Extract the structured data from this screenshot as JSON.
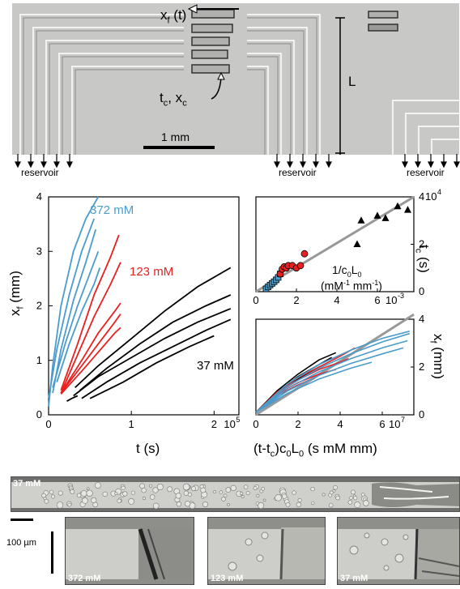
{
  "top_panel": {
    "xf_label": "x",
    "xf_sub": "f",
    "xf_suffix": " (t)",
    "L_label": "L",
    "tc_label": "t",
    "tc_sub": "c",
    "xc_sep": ", x",
    "xc_sub": "c",
    "scale_label": "1 mm",
    "reservoir_labels": [
      "reservoir",
      "reservoir",
      "reservoir"
    ]
  },
  "bottom_panel": {
    "strip_label": "37 mM",
    "scale_label": "100 µm",
    "insets": [
      "372 mM",
      "123 mM",
      "37 mM"
    ]
  },
  "chart_data": [
    {
      "type": "line",
      "xlabel": "t (s)",
      "ylabel": "x",
      "ylabel_sub": "f",
      "ylabel_suffix": " (mm)",
      "xlim": [
        0,
        230000
      ],
      "ylim": [
        0,
        4
      ],
      "xticks": [
        "0",
        "1",
        "2"
      ],
      "xtick_exponent": "10",
      "xtick_exponent_power": "5",
      "yticks": [
        "0",
        "1",
        "2",
        "3",
        "4"
      ],
      "series": [
        {
          "name": "372 mM",
          "color": "#4a9ccc",
          "curves": [
            {
              "x": [
                0,
                5000,
                15000,
                30000,
                45000,
                60000
              ],
              "y": [
                0.15,
                0.9,
                2.0,
                3.0,
                3.6,
                4.0
              ]
            },
            {
              "x": [
                0,
                10000,
                25000,
                40000,
                55000
              ],
              "y": [
                0.3,
                1.2,
                2.2,
                3.0,
                3.6
              ]
            },
            {
              "x": [
                5000,
                15000,
                30000,
                45000,
                57000
              ],
              "y": [
                0.4,
                1.2,
                2.1,
                2.8,
                3.4
              ]
            },
            {
              "x": [
                5000,
                20000,
                35000,
                50000,
                60000
              ],
              "y": [
                0.5,
                1.3,
                2.0,
                2.6,
                3.0
              ]
            },
            {
              "x": [
                10000,
                25000,
                40000,
                55000,
                62000
              ],
              "y": [
                0.6,
                1.3,
                1.9,
                2.4,
                2.7
              ]
            }
          ]
        },
        {
          "name": "123 mM",
          "color": "#e82020",
          "curves": [
            {
              "x": [
                15000,
                35000,
                55000,
                75000,
                85000
              ],
              "y": [
                0.45,
                1.3,
                2.2,
                2.9,
                3.3
              ]
            },
            {
              "x": [
                15000,
                35000,
                55000,
                75000,
                87000
              ],
              "y": [
                0.4,
                1.1,
                1.8,
                2.4,
                2.8
              ]
            },
            {
              "x": [
                15000,
                40000,
                60000,
                80000,
                87000
              ],
              "y": [
                0.4,
                1.0,
                1.5,
                1.9,
                2.05
              ]
            },
            {
              "x": [
                15000,
                40000,
                60000,
                80000,
                87000
              ],
              "y": [
                0.4,
                0.9,
                1.3,
                1.7,
                1.85
              ]
            },
            {
              "x": [
                15000,
                40000,
                60000,
                80000,
                87000
              ],
              "y": [
                0.38,
                0.8,
                1.15,
                1.5,
                1.6
              ]
            }
          ]
        },
        {
          "name": "37 mM",
          "color": "#000000",
          "curves": [
            {
              "x": [
                32000,
                60000,
                100000,
                140000,
                180000,
                220000
              ],
              "y": [
                0.5,
                0.9,
                1.4,
                1.9,
                2.35,
                2.7
              ]
            },
            {
              "x": [
                38000,
                70000,
                110000,
                150000,
                190000,
                220000
              ],
              "y": [
                0.45,
                0.85,
                1.3,
                1.7,
                2.0,
                2.2
              ]
            },
            {
              "x": [
                30000,
                60000,
                100000,
                140000,
                180000,
                220000
              ],
              "y": [
                0.35,
                0.7,
                1.05,
                1.4,
                1.7,
                1.95
              ]
            },
            {
              "x": [
                40000,
                70000,
                110000,
                150000,
                190000,
                220000
              ],
              "y": [
                0.3,
                0.6,
                0.95,
                1.25,
                1.55,
                1.75
              ]
            },
            {
              "x": [
                22000,
                28000,
                35000
              ],
              "y": [
                0.25,
                0.3,
                0.35
              ]
            },
            {
              "x": [
                50000,
                90000,
                130000,
                170000,
                200000
              ],
              "y": [
                0.3,
                0.6,
                0.95,
                1.25,
                1.45
              ]
            }
          ]
        }
      ]
    },
    {
      "type": "scatter",
      "xlabel": "1/c",
      "xlabel_sub": "0",
      "xlabel_L": "L",
      "xlabel_L_sub": "0",
      "xlabel_units_open": "(mM",
      "xlabel_units_exp1": "-1",
      "xlabel_units_mid": " mm",
      "xlabel_units_exp2": "-1",
      "xlabel_units_close": ")",
      "ylabel": "t",
      "ylabel_sub": "c",
      "ylabel_suffix": " (s)",
      "xlim": [
        0,
        0.0078
      ],
      "ylim": [
        0,
        40000
      ],
      "xticks": [
        "0",
        "2",
        "4",
        "6"
      ],
      "xtick_exponent": "10",
      "xtick_exponent_power": "-3",
      "yticks": [
        "0",
        "2",
        "4"
      ],
      "ytick_exponent": "10",
      "ytick_exponent_power": "4",
      "fit": {
        "x": [
          0,
          0.0078
        ],
        "y": [
          0,
          40000
        ],
        "color": "#999999"
      },
      "series": [
        {
          "name": "372 mM",
          "marker": "square",
          "color": "#4a9ccc",
          "x": [
            0.0005,
            0.0006,
            0.0007,
            0.0008,
            0.0009,
            0.001,
            0.0011,
            0.0012
          ],
          "y": [
            1200,
            2000,
            2800,
            3500,
            4200,
            5000,
            6000,
            7500
          ]
        },
        {
          "name": "123 mM",
          "marker": "circle",
          "color": "#e82020",
          "x": [
            0.0012,
            0.0013,
            0.0014,
            0.0015,
            0.0016,
            0.0018,
            0.002,
            0.0022,
            0.0024
          ],
          "y": [
            7500,
            9500,
            10500,
            10000,
            11000,
            11000,
            10000,
            11000,
            16000
          ]
        },
        {
          "name": "37 mM",
          "marker": "triangle",
          "color": "#000000",
          "x": [
            0.005,
            0.0052,
            0.006,
            0.0064,
            0.007,
            0.0075
          ],
          "y": [
            20000,
            30000,
            32000,
            31000,
            36000,
            34500
          ]
        }
      ]
    },
    {
      "type": "line",
      "xlabel": "(t-t",
      "xlabel_sub1": "c",
      "xlabel_mid": ")c",
      "xlabel_sub2": "0",
      "xlabel_L": "L",
      "xlabel_sub3": "0",
      "xlabel_suffix": " (s mM mm)",
      "ylabel": "x",
      "ylabel_sub": "f",
      "ylabel_suffix": " (mm)",
      "xlim": [
        0,
        75000000
      ],
      "ylim": [
        0,
        4
      ],
      "xticks": [
        "0",
        "2",
        "4",
        "6"
      ],
      "xtick_exponent": "10",
      "xtick_exponent_power": "7",
      "yticks": [
        "0",
        "2",
        "4"
      ],
      "fit": {
        "x": [
          0,
          75000000
        ],
        "y": [
          0,
          4.2
        ],
        "color": "#999999"
      },
      "series": [
        {
          "name": "37 mM",
          "color": "#000000",
          "curves": [
            {
              "x": [
                0,
                10000000,
                20000000,
                30000000,
                38000000
              ],
              "y": [
                0.1,
                1.0,
                1.7,
                2.3,
                2.6
              ]
            },
            {
              "x": [
                0,
                10000000,
                20000000,
                30000000,
                36000000
              ],
              "y": [
                0.1,
                0.95,
                1.6,
                2.1,
                2.4
              ]
            },
            {
              "x": [
                0,
                10000000,
                20000000,
                30000000
              ],
              "y": [
                0.1,
                0.9,
                1.5,
                2.0
              ]
            }
          ]
        },
        {
          "name": "123 mM",
          "color": "#e82020",
          "curves": [
            {
              "x": [
                0,
                10000000,
                20000000,
                30000000,
                40000000,
                47000000
              ],
              "y": [
                0.1,
                0.95,
                1.55,
                2.0,
                2.45,
                2.8
              ]
            },
            {
              "x": [
                0,
                10000000,
                20000000,
                30000000,
                40000000,
                44000000
              ],
              "y": [
                0.1,
                0.9,
                1.45,
                1.9,
                2.2,
                2.35
              ]
            },
            {
              "x": [
                0,
                10000000,
                20000000,
                30000000,
                38000000
              ],
              "y": [
                0.1,
                0.85,
                1.35,
                1.7,
                1.9
              ]
            },
            {
              "x": [
                0,
                10000000,
                20000000,
                28000000
              ],
              "y": [
                0.1,
                0.8,
                1.25,
                1.55
              ]
            }
          ]
        },
        {
          "name": "372 mM",
          "color": "#4a9ccc",
          "curves": [
            {
              "x": [
                0,
                15000000,
                30000000,
                45000000,
                60000000,
                73000000
              ],
              "y": [
                0.1,
                1.3,
                2.1,
                2.7,
                3.2,
                3.5
              ]
            },
            {
              "x": [
                0,
                15000000,
                30000000,
                45000000,
                60000000,
                73000000
              ],
              "y": [
                0.1,
                1.2,
                1.95,
                2.55,
                3.05,
                3.4
              ]
            },
            {
              "x": [
                0,
                15000000,
                30000000,
                45000000,
                60000000,
                72000000
              ],
              "y": [
                0.1,
                1.1,
                1.8,
                2.35,
                2.8,
                3.1
              ]
            },
            {
              "x": [
                0,
                15000000,
                30000000,
                45000000,
                60000000,
                70000000
              ],
              "y": [
                0.1,
                1.0,
                1.65,
                2.15,
                2.55,
                2.8
              ]
            },
            {
              "x": [
                0,
                15000000,
                30000000,
                45000000,
                55000000
              ],
              "y": [
                0.1,
                0.9,
                1.5,
                1.95,
                2.2
              ]
            }
          ]
        }
      ]
    }
  ]
}
